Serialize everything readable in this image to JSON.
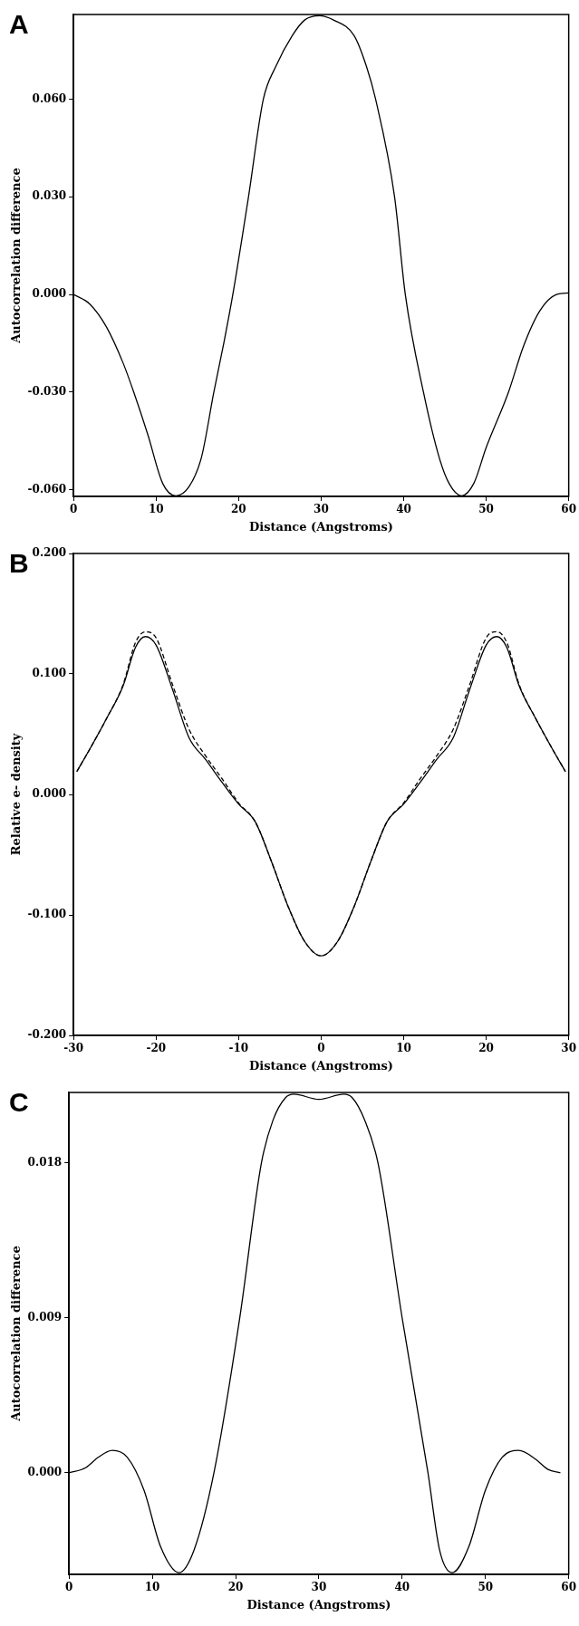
{
  "chart_data": [
    {
      "type": "line",
      "title": "A",
      "xlabel": "Distance (Angstroms)",
      "ylabel": "Autocorrelation difference",
      "xlim": [
        0,
        60
      ],
      "xticks": [
        0,
        10,
        20,
        30,
        40,
        50,
        60
      ],
      "ylim": [
        -0.062,
        0.086
      ],
      "yticks": [
        {
          "value": -0.06,
          "label": "-0.060"
        },
        {
          "value": -0.03,
          "label": "-0.030"
        },
        {
          "value": 0,
          "label": "0.000"
        },
        {
          "value": 0.03,
          "label": "0.030"
        },
        {
          "value": 0.06,
          "label": "0.060"
        }
      ],
      "grid": false,
      "legend": false,
      "marker": "none",
      "series": [
        {
          "color": "#000000",
          "line_style": "solid",
          "x": [
            0,
            2,
            4,
            6,
            7.3,
            9,
            10.8,
            12.4,
            14,
            15.5,
            17,
            18.2,
            19.3,
            21.2,
            23,
            24.5,
            26.5,
            28,
            29.8,
            31.5,
            34,
            35.5,
            36.6,
            38.9,
            40.2,
            42.4,
            44.3,
            45.5,
            47,
            48.5,
            50,
            52.7,
            54.5,
            56.5,
            58.5,
            60
          ],
          "values": [
            0,
            -0.003,
            -0.01,
            -0.021,
            -0.03,
            -0.043,
            -0.058,
            -0.0618,
            -0.059,
            -0.05,
            -0.03,
            -0.015,
            0,
            0.03,
            0.06,
            0.07,
            0.0795,
            0.0843,
            0.0856,
            0.0843,
            0.0795,
            0.07,
            0.06,
            0.03,
            0,
            -0.03,
            -0.05,
            -0.058,
            -0.0618,
            -0.058,
            -0.047,
            -0.03,
            -0.016,
            -0.005,
            0,
            0.0005
          ]
        }
      ]
    },
    {
      "type": "line",
      "title": "B",
      "xlabel": "Distance (Angstroms)",
      "ylabel": "Relative e- density",
      "xlim": [
        -30,
        30
      ],
      "xticks": [
        -30,
        -20,
        -10,
        0,
        10,
        20,
        30
      ],
      "ylim": [
        -0.2,
        0.2
      ],
      "yticks": [
        {
          "value": -0.2,
          "label": "-0.200"
        },
        {
          "value": -0.1,
          "label": "-0.100"
        },
        {
          "value": 0,
          "label": "0.000"
        },
        {
          "value": 0.1,
          "label": "0.100"
        },
        {
          "value": 0.2,
          "label": "0.200"
        }
      ],
      "grid": false,
      "legend": false,
      "marker": "none",
      "series": [
        {
          "color": "#000000",
          "line_style": "solid",
          "x": [
            -29.6,
            -28,
            -26,
            -24,
            -22.5,
            -21.3,
            -20,
            -18,
            -16,
            -14,
            -12,
            -10,
            -8,
            -6,
            -4,
            -2,
            0,
            2,
            4,
            6,
            8,
            10,
            12,
            14,
            16,
            18,
            20,
            21.3,
            22.5,
            24,
            26,
            28,
            29.6
          ],
          "values": [
            0.019,
            0.038,
            0.063,
            0.09,
            0.122,
            0.131,
            0.124,
            0.087,
            0.047,
            0.029,
            0.01,
            -0.008,
            -0.0225,
            -0.056,
            -0.093,
            -0.122,
            -0.134,
            -0.122,
            -0.093,
            -0.056,
            -0.0225,
            -0.008,
            0.01,
            0.029,
            0.047,
            0.087,
            0.124,
            0.131,
            0.122,
            0.09,
            0.063,
            0.038,
            0.019
          ]
        },
        {
          "color": "#000000",
          "line_style": "dashed",
          "x": [
            -29.6,
            -28,
            -26,
            -24,
            -22.5,
            -21.3,
            -20,
            -18,
            -16,
            -14,
            -12,
            -10,
            -8,
            -6,
            -4,
            -2,
            0,
            2,
            4,
            6,
            8,
            10,
            12,
            14,
            16,
            18,
            20,
            21.3,
            22.5,
            24,
            26,
            28,
            29.6
          ],
          "values": [
            0.019,
            0.038,
            0.063,
            0.091,
            0.126,
            0.135,
            0.13,
            0.091,
            0.054,
            0.032,
            0.013,
            -0.007,
            -0.0225,
            -0.056,
            -0.093,
            -0.122,
            -0.134,
            -0.122,
            -0.093,
            -0.056,
            -0.0225,
            -0.007,
            0.013,
            0.032,
            0.054,
            0.091,
            0.13,
            0.135,
            0.126,
            0.091,
            0.063,
            0.038,
            0.019
          ]
        }
      ]
    },
    {
      "type": "line",
      "title": "C",
      "xlabel": "Distance (Angstroms)",
      "ylabel": "Autocorrelation difference",
      "xlim": [
        0,
        60
      ],
      "xticks": [
        0,
        10,
        20,
        30,
        40,
        50,
        60
      ],
      "ylim": [
        -0.0059,
        0.0221
      ],
      "yticks": [
        {
          "value": 0,
          "label": "0.000"
        },
        {
          "value": 0.009,
          "label": "0.009"
        },
        {
          "value": 0.018,
          "label": "0.018"
        }
      ],
      "grid": false,
      "legend": false,
      "marker": "none",
      "series": [
        {
          "color": "#000000",
          "line_style": "solid",
          "x": [
            0,
            2,
            3.5,
            5.2,
            7,
            9,
            11,
            13.2,
            15,
            17.4,
            20.5,
            23.1,
            24.5,
            26,
            27,
            30,
            33,
            34,
            35.5,
            37.1,
            40,
            43.1,
            44.5,
            46,
            48,
            50,
            52,
            54,
            56,
            57.5,
            59
          ],
          "values": [
            0,
            0.0003,
            0.0009,
            0.0013,
            0.0009,
            -0.001,
            -0.0043,
            -0.0058,
            -0.0045,
            0,
            0.009,
            0.018,
            0.0205,
            0.0218,
            0.022,
            0.0217,
            0.022,
            0.0218,
            0.0205,
            0.018,
            0.009,
            0,
            -0.0045,
            -0.0058,
            -0.0043,
            -0.001,
            0.0009,
            0.0013,
            0.0008,
            0.0002,
            0
          ]
        }
      ]
    }
  ]
}
